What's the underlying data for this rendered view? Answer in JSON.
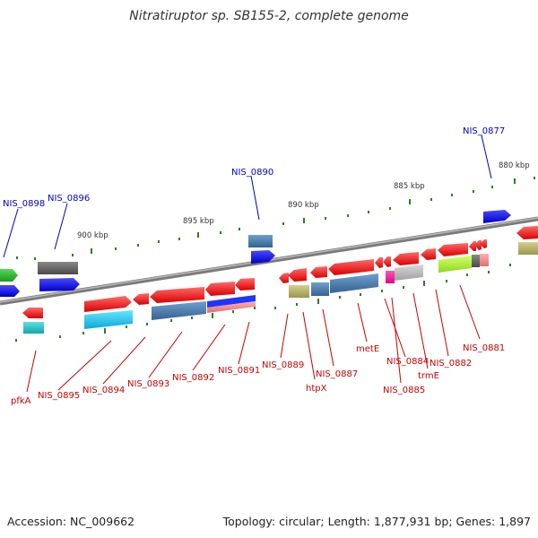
{
  "title": "Nitratiruptor sp. SB155-2, complete genome",
  "footer": {
    "accession": "Accession: NC_009662",
    "summary": "Topology: circular; Length: 1,877,931 bp; Genes: 1,897"
  },
  "scale_labels": [
    "880 kbp",
    "885 kbp",
    "890 kbp",
    "895 kbp",
    "900 kbp"
  ],
  "top_labels": [
    "NIS_0898",
    "NIS_0896",
    "NIS_0890",
    "NIS_0877"
  ],
  "bottom_labels": [
    "pfkA",
    "NIS_0895",
    "NIS_0894",
    "NIS_0893",
    "NIS_0892",
    "NIS_0891",
    "NIS_0889",
    "htpX",
    "NIS_0887",
    "metE",
    "NIS_0884",
    "NIS_0885",
    "trmE",
    "NIS_0882",
    "NIS_0881"
  ],
  "colors": {
    "top_label": "#0000cc",
    "bottom_label": "#cc0000",
    "tick": "#2e7d1e",
    "backbone": "#808080"
  }
}
